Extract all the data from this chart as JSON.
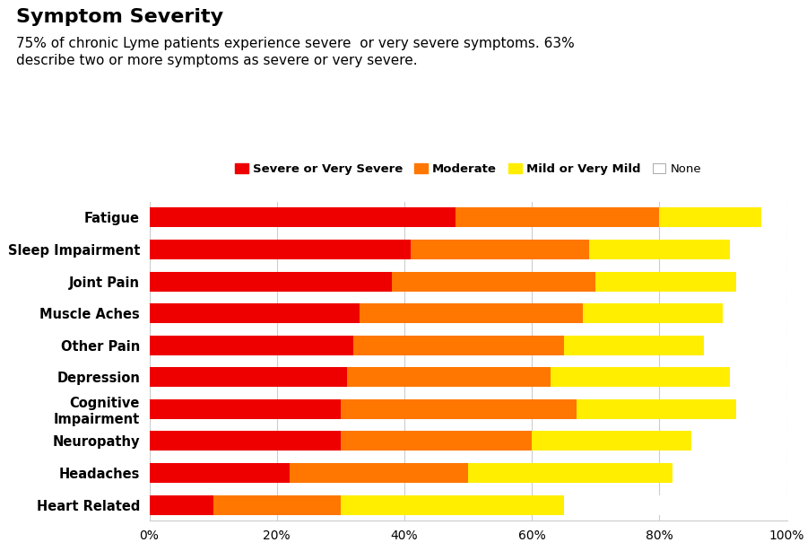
{
  "title": "Symptom Severity",
  "subtitle": "75% of chronic Lyme patients experience severe  or very severe symptoms. 63%\ndescribe two or more symptoms as severe or very severe.",
  "categories": [
    "Fatigue",
    "Sleep Impairment",
    "Joint Pain",
    "Muscle Aches",
    "Other Pain",
    "Depression",
    "Cognitive\nImpairment",
    "Neuropathy",
    "Headaches",
    "Heart Related"
  ],
  "severe": [
    48,
    41,
    38,
    33,
    32,
    31,
    30,
    30,
    22,
    10
  ],
  "moderate": [
    32,
    28,
    32,
    35,
    33,
    32,
    37,
    30,
    28,
    20
  ],
  "mild": [
    16,
    22,
    22,
    22,
    22,
    28,
    25,
    25,
    32,
    35
  ],
  "none": [
    4,
    9,
    8,
    10,
    13,
    9,
    8,
    15,
    18,
    35
  ],
  "colors": {
    "severe": "#EE0000",
    "moderate": "#FF7700",
    "mild": "#FFEE00",
    "none": "#FFFFFF"
  },
  "legend_labels": [
    "Severe or Very Severe",
    "Moderate",
    "Mild or Very Mild",
    "None"
  ],
  "xlabel_ticks": [
    0,
    20,
    40,
    60,
    80,
    100
  ],
  "xlabel_labels": [
    "0%",
    "20%",
    "40%",
    "60%",
    "80%",
    "100%"
  ],
  "background_color": "#FFFFFF",
  "grid_color": "#CCCCCC",
  "bar_height": 0.62,
  "title_fontsize": 16,
  "subtitle_fontsize": 11,
  "legend_fontsize": 9.5,
  "ytick_fontsize": 10.5,
  "xtick_fontsize": 10
}
